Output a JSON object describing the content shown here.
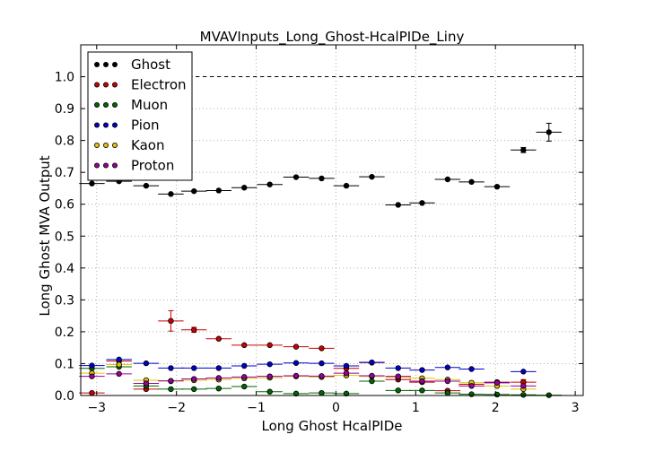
{
  "chart_data": {
    "type": "scatter",
    "title": "MVAVInputs_Long_Ghost-HcalPIDe_Liny",
    "xlabel": "Long Ghost HcalPIDe",
    "ylabel": "Long Ghost MVA Output",
    "xlim": [
      -3.2,
      3.1
    ],
    "ylim": [
      0.0,
      1.1
    ],
    "xticks": [
      -3,
      -2,
      -1,
      0,
      1,
      2,
      3
    ],
    "yticks": [
      0.0,
      0.1,
      0.2,
      0.3,
      0.4,
      0.5,
      0.6,
      0.7,
      0.8,
      0.9,
      1.0
    ],
    "xtick_labels": [
      "−3",
      "−2",
      "−1",
      "0",
      "1",
      "2",
      "3"
    ],
    "ytick_labels": [
      "0.0",
      "0.1",
      "0.2",
      "0.3",
      "0.4",
      "0.5",
      "0.6",
      "0.7",
      "0.8",
      "0.9",
      "1.0"
    ],
    "grid": true,
    "legend_position": "top-left",
    "reference_line_y": 1.0,
    "x_bin_half_width": 0.16,
    "series": [
      {
        "name": "Ghost",
        "color": "#000000",
        "x": [
          -3.06,
          -2.72,
          -2.38,
          -2.07,
          -1.78,
          -1.47,
          -1.15,
          -0.83,
          -0.5,
          -0.18,
          0.13,
          0.45,
          0.78,
          1.08,
          1.4,
          1.7,
          2.02,
          2.35,
          2.67
        ],
        "y": [
          0.665,
          0.672,
          0.658,
          0.632,
          0.641,
          0.643,
          0.652,
          0.662,
          0.685,
          0.681,
          0.658,
          0.686,
          0.598,
          0.604,
          0.678,
          0.67,
          0.655,
          0.77,
          0.826
        ],
        "yerr": [
          0.003,
          0.003,
          0.003,
          0.003,
          0.003,
          0.003,
          0.003,
          0.003,
          0.003,
          0.003,
          0.003,
          0.004,
          0.004,
          0.004,
          0.004,
          0.004,
          0.005,
          0.008,
          0.028
        ]
      },
      {
        "name": "Electron",
        "color": "#cc0000",
        "x": [
          -3.06,
          -2.72,
          -2.38,
          -2.07,
          -1.78,
          -1.47,
          -1.15,
          -0.83,
          -0.5,
          -0.18,
          0.13,
          0.45,
          0.78,
          1.08,
          1.4,
          1.7,
          2.02,
          2.35
        ],
        "y": [
          0.008,
          0.108,
          0.02,
          0.234,
          0.206,
          0.178,
          0.158,
          0.158,
          0.153,
          0.148,
          0.085,
          0.103,
          0.05,
          0.042,
          0.015,
          0.035,
          0.042,
          0.042
        ],
        "yerr": [
          0.002,
          0.004,
          0.003,
          0.032,
          0.008,
          0.006,
          0.005,
          0.005,
          0.005,
          0.005,
          0.004,
          0.005,
          0.004,
          0.004,
          0.003,
          0.004,
          0.005,
          0.008
        ]
      },
      {
        "name": "Muon",
        "color": "#006600",
        "x": [
          -3.06,
          -2.72,
          -2.38,
          -2.07,
          -1.78,
          -1.47,
          -1.15,
          -0.83,
          -0.5,
          -0.18,
          0.13,
          0.45,
          0.78,
          1.08,
          1.4,
          1.7,
          2.02,
          2.35,
          2.67
        ],
        "y": [
          0.085,
          0.09,
          0.03,
          0.02,
          0.02,
          0.022,
          0.028,
          0.012,
          0.006,
          0.008,
          0.006,
          0.045,
          0.016,
          0.016,
          0.008,
          0.004,
          0.003,
          0.002,
          0.001
        ],
        "yerr": [
          0.002,
          0.002,
          0.002,
          0.002,
          0.002,
          0.002,
          0.002,
          0.002,
          0.002,
          0.002,
          0.002,
          0.003,
          0.002,
          0.002,
          0.002,
          0.002,
          0.002,
          0.002,
          0.002
        ]
      },
      {
        "name": "Pion",
        "color": "#0000cc",
        "x": [
          -3.06,
          -2.72,
          -2.38,
          -2.07,
          -1.78,
          -1.47,
          -1.15,
          -0.83,
          -0.5,
          -0.18,
          0.13,
          0.45,
          0.78,
          1.08,
          1.4,
          1.7,
          2.02,
          2.35
        ],
        "y": [
          0.094,
          0.113,
          0.101,
          0.086,
          0.086,
          0.086,
          0.093,
          0.098,
          0.102,
          0.101,
          0.093,
          0.104,
          0.086,
          0.08,
          0.088,
          0.083,
          0.04,
          0.075
        ],
        "yerr": [
          0.002,
          0.002,
          0.002,
          0.002,
          0.002,
          0.002,
          0.002,
          0.002,
          0.002,
          0.002,
          0.002,
          0.003,
          0.002,
          0.002,
          0.002,
          0.003,
          0.004,
          0.006
        ]
      },
      {
        "name": "Kaon",
        "color": "#e6c200",
        "x": [
          -3.06,
          -2.72,
          -2.38,
          -2.07,
          -1.78,
          -1.47,
          -1.15,
          -0.83,
          -0.5,
          -0.18,
          0.13,
          0.45,
          0.78,
          1.08,
          1.4,
          1.7,
          2.02,
          2.35
        ],
        "y": [
          0.07,
          0.097,
          0.048,
          0.045,
          0.048,
          0.05,
          0.054,
          0.056,
          0.06,
          0.058,
          0.063,
          0.06,
          0.057,
          0.054,
          0.05,
          0.04,
          0.03,
          0.02
        ],
        "yerr": [
          0.002,
          0.002,
          0.002,
          0.002,
          0.002,
          0.002,
          0.002,
          0.002,
          0.002,
          0.002,
          0.002,
          0.003,
          0.002,
          0.002,
          0.002,
          0.003,
          0.003,
          0.004
        ]
      },
      {
        "name": "Proton",
        "color": "#990099",
        "x": [
          -3.06,
          -2.72,
          -2.38,
          -2.07,
          -1.78,
          -1.47,
          -1.15,
          -0.83,
          -0.5,
          -0.18,
          0.13,
          0.45,
          0.78,
          1.08,
          1.4,
          1.7,
          2.02,
          2.35
        ],
        "y": [
          0.06,
          0.068,
          0.038,
          0.046,
          0.052,
          0.055,
          0.058,
          0.06,
          0.062,
          0.061,
          0.07,
          0.062,
          0.06,
          0.045,
          0.045,
          0.03,
          0.04,
          0.03
        ],
        "yerr": [
          0.002,
          0.002,
          0.002,
          0.002,
          0.002,
          0.002,
          0.002,
          0.002,
          0.002,
          0.002,
          0.003,
          0.003,
          0.002,
          0.002,
          0.002,
          0.003,
          0.003,
          0.004
        ]
      }
    ]
  }
}
